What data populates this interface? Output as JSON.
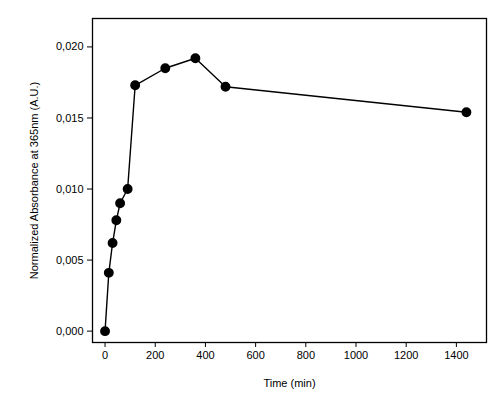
{
  "chart_data": {
    "type": "line",
    "x_label": "Time (min)",
    "y_label": "Normalized Absorbance at 365nm (A.U.)",
    "x": [
      0,
      15,
      30,
      45,
      60,
      90,
      120,
      240,
      360,
      480,
      1440
    ],
    "series": [
      {
        "name": null,
        "color": "#000000",
        "marker": "circle",
        "line_style": "solid",
        "values": [
          0.0,
          0.0041,
          0.0062,
          0.0078,
          0.009,
          0.01,
          0.0173,
          0.0185,
          0.0192,
          0.0172,
          0.0154
        ]
      }
    ],
    "xlim": [
      -50,
      1520
    ],
    "xticks": [
      0,
      200,
      400,
      600,
      800,
      1000,
      1200,
      1400
    ],
    "ylim": [
      -0.0008,
      0.022
    ],
    "yticks": [
      {
        "value": 0,
        "label": "0,000"
      },
      {
        "value": 0.005,
        "label": "0,005"
      },
      {
        "value": 0.01,
        "label": "0,010"
      },
      {
        "value": 0.015,
        "label": "0,015"
      },
      {
        "value": 0.02,
        "label": "0,020"
      }
    ],
    "grid": false
  }
}
